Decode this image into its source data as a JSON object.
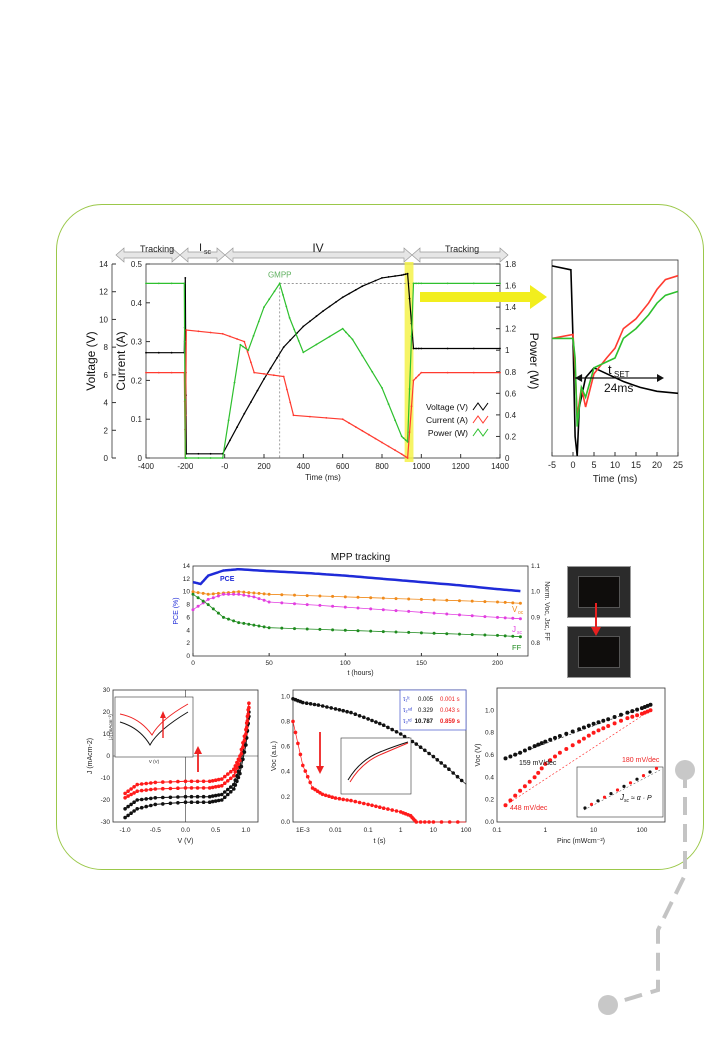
{
  "colors": {
    "frame": "#9bc84a",
    "voltage": "#000000",
    "current": "#ff3b30",
    "power": "#2ec02e",
    "highlight": "#f5f24a",
    "pce": "#1f2bd8",
    "voc": "#f08a1a",
    "jsc": "#e23ee0",
    "ff": "#1e8a1e",
    "red_series": "#ff1a1a",
    "black_series": "#111111"
  },
  "main": {
    "phases": [
      "Tracking",
      "I",
      "sc",
      "IV",
      "Tracking"
    ],
    "xlabel": "Time (ms)",
    "ylabel_voltage": "Voltage (V)",
    "ylabel_current": "Current (A)",
    "ylabel_power": "Power (W)",
    "gmpp": "GMPP",
    "legend": [
      "Voltage (V)",
      "Current (A)",
      "Power (W)"
    ],
    "xticks": [
      "-400",
      "-200",
      "-0",
      "200",
      "400",
      "600",
      "800",
      "1000",
      "1200",
      "1400"
    ],
    "voltage_ticks": [
      "0",
      "2",
      "4",
      "6",
      "8",
      "10",
      "12",
      "14"
    ],
    "current_ticks": [
      "0",
      "0.1",
      "0.2",
      "0.3",
      "0.4",
      "0.5"
    ],
    "power_ticks": [
      "0",
      "0.2",
      "0.4",
      "0.6",
      "0.8",
      "1",
      "1.2",
      "1.4",
      "1.6",
      "1.8"
    ]
  },
  "zoom": {
    "xlabel": "Time (ms)",
    "xticks": [
      "-5",
      "0",
      "5",
      "10",
      "15",
      "20",
      "25"
    ],
    "tset": "t",
    "tset_sub": "SET",
    "tset_value": "24ms"
  },
  "mpp": {
    "title": "MPP tracking",
    "xlabel": "t (hours)",
    "ylabel_left": "PCE (%)",
    "ylabel_right": "Norm. V",
    "ylabel_right_tail": "oc",
    "ylabel_right_tail2": ", J",
    "ylabel_right_tail3": "sc",
    "ylabel_right_tail4": ", FF",
    "xticks": [
      "0",
      "50",
      "100",
      "150",
      "200"
    ],
    "yticks_left": [
      "0",
      "2",
      "4",
      "6",
      "8",
      "10",
      "12",
      "14"
    ],
    "yticks_right": [
      "0.8",
      "0.9",
      "1.0",
      "1.1"
    ],
    "labels": {
      "pce": "PCE",
      "voc": "V",
      "voc_sub": "oc",
      "jsc": "J",
      "jsc_sub": "sc",
      "ff": "FF"
    }
  },
  "jv": {
    "xlabel": "V (V)",
    "ylabel": "J (mAcm",
    "ylabel_sup": "-2",
    "ylabel_tail": ")",
    "xticks": [
      "-1.0",
      "-0.5",
      "0.0",
      "0.5",
      "1.0"
    ],
    "yticks": [
      "-30",
      "-20",
      "-10",
      "0",
      "10",
      "20",
      "30"
    ],
    "inset_xlabel": "V (V)",
    "inset_ylabel": "|J| (mAcm⁻²)"
  },
  "decay": {
    "xlabel": "t (s)",
    "ylabel": "V",
    "ylabel_sub": "oc",
    "ylabel_tail": " (a.u.)",
    "xticks": [
      "1E-3",
      "0.01",
      "0.1",
      "1",
      "10",
      "100"
    ],
    "yticks": [
      "0.0",
      "0.2",
      "0.4",
      "0.6",
      "0.8",
      "1.0"
    ],
    "table": [
      [
        "τ₁ˡᵗ",
        "0.005",
        "0.001 s"
      ],
      [
        "τ₂ⁿᵈ",
        "0.329",
        "0.043 s"
      ],
      [
        "τ₃ʳᵈ",
        "10.787",
        "0.859 s"
      ]
    ]
  },
  "vocp": {
    "xlabel": "P",
    "xlabel_sub": "inc",
    "xlabel_tail": " (mWcm⁻²)",
    "ylabel": "V",
    "ylabel_sub": "oc",
    "ylabel_tail": " (V)",
    "xticks": [
      "0.1",
      "1",
      "10",
      "100"
    ],
    "yticks": [
      "0.0",
      "0.2",
      "0.4",
      "0.6",
      "0.8",
      "1.0"
    ],
    "ann_black": "159 mV/dec",
    "ann_red_top": "180 mV/dec",
    "ann_red_bottom": "448 mV/dec",
    "formula": "J",
    "formula_sub": "sc",
    "formula_mid": " ≈ α · P",
    "formula_sub2": "inc",
    "formula_sup": "γ"
  },
  "chart_data": [
    {
      "type": "line",
      "title": "",
      "xlabel": "Time (ms)",
      "xlim": [
        -400,
        1400
      ],
      "series": [
        {
          "name": "Voltage (V)",
          "axis": "voltage",
          "x": [
            -400,
            -205,
            -200,
            -195,
            -10,
            100,
            200,
            300,
            400,
            500,
            600,
            700,
            800,
            900,
            930,
            960,
            1000,
            1400
          ],
          "values": [
            7.6,
            7.6,
            13,
            0.3,
            0.3,
            3.2,
            5.7,
            8.0,
            9.5,
            10.6,
            11.6,
            12.4,
            13.0,
            13.2,
            13.3,
            7.9,
            7.9,
            7.9
          ]
        },
        {
          "name": "Current (A)",
          "axis": "current",
          "x": [
            -400,
            -205,
            -200,
            -195,
            -10,
            100,
            150,
            300,
            350,
            600,
            700,
            800,
            900,
            930,
            960,
            1000,
            1400
          ],
          "values": [
            0.22,
            0.22,
            0.0,
            0.33,
            0.32,
            0.3,
            0.22,
            0.21,
            0.11,
            0.1,
            0.07,
            0.04,
            0.01,
            0.0,
            0.2,
            0.22,
            0.22
          ]
        },
        {
          "name": "Power (W)",
          "axis": "power",
          "x": [
            -400,
            -205,
            -200,
            -195,
            -10,
            80,
            120,
            200,
            280,
            330,
            400,
            600,
            650,
            800,
            900,
            930,
            960,
            1000,
            1400
          ],
          "values": [
            1.62,
            1.62,
            0.0,
            0.0,
            0.0,
            1.05,
            1.0,
            1.4,
            1.62,
            1.3,
            0.98,
            1.2,
            1.1,
            0.65,
            0.2,
            0.15,
            1.62,
            1.62,
            1.62
          ]
        }
      ],
      "ylim_voltage": [
        0,
        14
      ],
      "ylim_current": [
        0,
        0.5
      ],
      "ylim_power": [
        0,
        1.8
      ]
    },
    {
      "type": "line",
      "title": "",
      "xlabel": "Time (ms)",
      "xlim": [
        -5,
        25
      ],
      "series": [
        {
          "name": "Voltage",
          "x": [
            -5,
            -0.5,
            0,
            0.5,
            1,
            1.5,
            3,
            5,
            8,
            12,
            16,
            20,
            25
          ],
          "values": [
            0.97,
            0.95,
            0.6,
            0.1,
            0.0,
            0.25,
            0.4,
            0.45,
            0.42,
            0.38,
            0.35,
            0.33,
            0.32
          ]
        },
        {
          "name": "Current",
          "x": [
            -5,
            0,
            0.5,
            1,
            2,
            3,
            5,
            8,
            10,
            12,
            15,
            18,
            20,
            22,
            25
          ],
          "values": [
            0.6,
            0.62,
            0.45,
            0.2,
            0.35,
            0.25,
            0.42,
            0.5,
            0.55,
            0.65,
            0.7,
            0.78,
            0.85,
            0.9,
            0.92
          ]
        },
        {
          "name": "Power",
          "x": [
            -5,
            0,
            0.5,
            1,
            2,
            3,
            5,
            8,
            10,
            12,
            15,
            18,
            20,
            22,
            25
          ],
          "values": [
            0.6,
            0.6,
            0.5,
            0.15,
            0.35,
            0.3,
            0.45,
            0.48,
            0.5,
            0.6,
            0.65,
            0.72,
            0.78,
            0.82,
            0.84
          ]
        }
      ]
    },
    {
      "type": "scatter",
      "title": "MPP tracking",
      "xlabel": "t (hours)",
      "xlim": [
        0,
        220
      ],
      "ylim_left": [
        0,
        14
      ],
      "ylim_right": [
        0.75,
        1.1
      ],
      "series": [
        {
          "name": "PCE",
          "axis": "left",
          "x": [
            0,
            5,
            10,
            20,
            30,
            50,
            75,
            100,
            125,
            150,
            175,
            200,
            215
          ],
          "values": [
            11.5,
            11.2,
            12.5,
            13.3,
            13.5,
            13.2,
            12.9,
            12.5,
            12.0,
            11.5,
            11.0,
            10.4,
            10.1
          ]
        },
        {
          "name": "Voc",
          "axis": "right",
          "x": [
            0,
            10,
            20,
            30,
            40,
            50,
            75,
            100,
            125,
            150,
            175,
            200,
            215
          ],
          "values": [
            1.0,
            0.99,
            0.995,
            1.0,
            0.995,
            0.99,
            0.985,
            0.98,
            0.975,
            0.97,
            0.965,
            0.96,
            0.955
          ]
        },
        {
          "name": "Jsc",
          "axis": "right",
          "x": [
            0,
            10,
            20,
            30,
            40,
            50,
            75,
            100,
            125,
            150,
            175,
            200,
            215
          ],
          "values": [
            0.93,
            0.97,
            0.99,
            0.99,
            0.98,
            0.96,
            0.95,
            0.94,
            0.93,
            0.92,
            0.91,
            0.9,
            0.895
          ]
        },
        {
          "name": "FF",
          "axis": "right",
          "x": [
            0,
            10,
            20,
            30,
            40,
            50,
            75,
            100,
            125,
            150,
            175,
            200,
            215
          ],
          "values": [
            0.99,
            0.95,
            0.9,
            0.88,
            0.87,
            0.86,
            0.855,
            0.85,
            0.845,
            0.84,
            0.835,
            0.83,
            0.825
          ]
        }
      ]
    },
    {
      "type": "line",
      "title": "",
      "xlabel": "V (V)",
      "ylabel": "J (mAcm-2)",
      "xlim": [
        -1.2,
        1.2
      ],
      "ylim": [
        -30,
        30
      ],
      "series": [
        {
          "name": "black",
          "x": [
            -1.0,
            -0.8,
            -0.5,
            0,
            0.4,
            0.6,
            0.8,
            0.9,
            1.0,
            1.05
          ],
          "values": [
            -28,
            -24,
            -22,
            -21,
            -21,
            -20,
            -15,
            -8,
            5,
            18
          ]
        },
        {
          "name": "black",
          "x": [
            -1.0,
            -0.8,
            -0.5,
            0,
            0.4,
            0.6,
            0.8,
            0.9,
            1.0,
            1.05
          ],
          "values": [
            -24,
            -20,
            -19,
            -18.5,
            -18.5,
            -17.5,
            -13,
            -5,
            8,
            20
          ]
        },
        {
          "name": "red",
          "x": [
            -1.0,
            -0.8,
            -0.5,
            0,
            0.4,
            0.6,
            0.8,
            0.9,
            1.0,
            1.05
          ],
          "values": [
            -19,
            -16,
            -15,
            -14.5,
            -14.5,
            -13.5,
            -9,
            -2,
            10,
            22
          ]
        },
        {
          "name": "red",
          "x": [
            -1.0,
            -0.8,
            -0.5,
            0,
            0.4,
            0.6,
            0.8,
            0.9,
            1.0,
            1.05
          ],
          "values": [
            -17,
            -13,
            -12,
            -11.5,
            -11.5,
            -10.5,
            -6,
            0,
            12,
            24
          ]
        }
      ]
    },
    {
      "type": "scatter",
      "title": "",
      "xlabel": "t (s)",
      "ylabel": "Voc (a.u.)",
      "xlim": [
        0.0005,
        100
      ],
      "ylim": [
        0,
        1.05
      ],
      "series": [
        {
          "name": "black",
          "x": [
            0.0005,
            0.001,
            0.003,
            0.01,
            0.03,
            0.1,
            0.3,
            1,
            3,
            10,
            30,
            100
          ],
          "values": [
            0.98,
            0.95,
            0.93,
            0.9,
            0.87,
            0.82,
            0.77,
            0.7,
            0.62,
            0.52,
            0.42,
            0.3
          ]
        },
        {
          "name": "red",
          "x": [
            0.0005,
            0.001,
            0.002,
            0.004,
            0.01,
            0.03,
            0.1,
            0.3,
            1,
            2,
            3,
            10,
            100
          ],
          "values": [
            0.8,
            0.45,
            0.27,
            0.22,
            0.19,
            0.17,
            0.14,
            0.11,
            0.08,
            0.05,
            0.0,
            0.0,
            0.0
          ]
        }
      ]
    },
    {
      "type": "scatter",
      "title": "",
      "xlabel": "Pinc (mWcm-2)",
      "ylabel": "Voc (V)",
      "xlim": [
        0.1,
        300
      ],
      "ylim": [
        0,
        1.2
      ],
      "series": [
        {
          "name": "black",
          "x": [
            0.15,
            0.3,
            0.6,
            1,
            2,
            5,
            10,
            20,
            50,
            100,
            150
          ],
          "values": [
            0.57,
            0.62,
            0.68,
            0.72,
            0.77,
            0.83,
            0.88,
            0.92,
            0.98,
            1.02,
            1.05
          ]
        },
        {
          "name": "red",
          "x": [
            0.15,
            0.3,
            0.6,
            1,
            2,
            5,
            10,
            20,
            50,
            100,
            150
          ],
          "values": [
            0.15,
            0.28,
            0.4,
            0.52,
            0.62,
            0.72,
            0.8,
            0.86,
            0.93,
            0.97,
            1.0
          ]
        }
      ]
    }
  ]
}
